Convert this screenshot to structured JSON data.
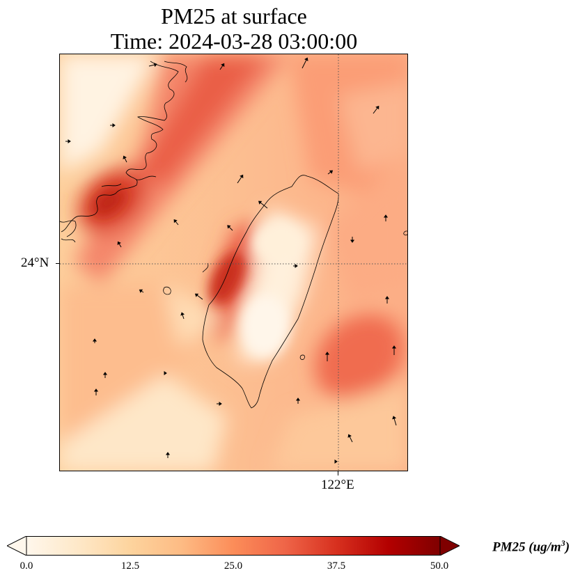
{
  "title": {
    "line1": "PM25 at surface",
    "line2": "Time: 2024-03-28 03:00:00"
  },
  "map": {
    "lat_label": "24°N",
    "lon_label": "122°E",
    "graticule_style": "dotted",
    "colormap": "OrRd"
  },
  "colorbar": {
    "label": "PM25 (ug/m",
    "label_exponent": "3",
    "label_suffix": ")",
    "ticks": [
      "0.0",
      "12.5",
      "25.0",
      "37.5",
      "50.0"
    ],
    "min": 0,
    "max": 50,
    "extend": "both",
    "colors": [
      "#fff7ec",
      "#fee8c8",
      "#fdd49e",
      "#fdbb84",
      "#fc8d59",
      "#ef6548",
      "#d7301f",
      "#b30000",
      "#7f0000"
    ]
  }
}
